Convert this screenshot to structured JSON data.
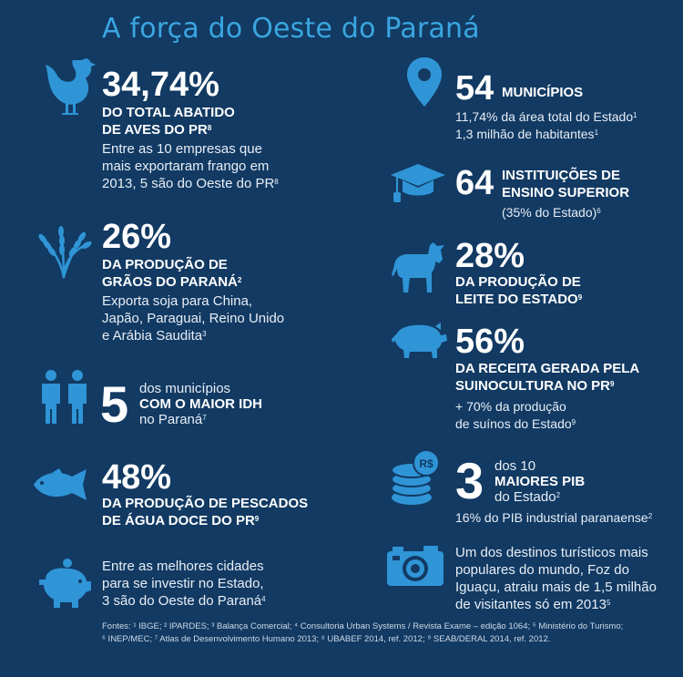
{
  "title": "A força do Oeste do Paraná",
  "left": {
    "poultry": {
      "value": "34,74%",
      "label_line1": "DO TOTAL ABATIDO",
      "label_line2": "DE AVES DO PR",
      "label_sup": "8",
      "desc_line1": "Entre as 10 empresas que",
      "desc_line2": "mais exportaram frango em",
      "desc_line3": "2013, 5 são do Oeste do PR",
      "desc_sup": "8"
    },
    "grains": {
      "value": "26%",
      "label_line1": "DA PRODUÇÃO DE",
      "label_line2": "GRÃOS DO PARANÁ",
      "label_sup": "2",
      "desc_line1": "Exporta soja para China,",
      "desc_line2": "Japão, Paraguai, Reino Unido",
      "desc_line3": "e Arábia Saudita",
      "desc_sup": "3"
    },
    "idh": {
      "value": "5",
      "line1": "dos municípios",
      "line2": "COM O MAIOR IDH",
      "line3": "no Paraná",
      "sup": "7"
    },
    "fish": {
      "value": "48%",
      "label_line1": "DA PRODUÇÃO DE PESCADOS",
      "label_line2": "DE ÁGUA DOCE DO PR",
      "label_sup": "9"
    },
    "invest": {
      "line1": "Entre as melhores cidades",
      "line2": "para se investir no Estado,",
      "line3": "3 são do Oeste do Paraná",
      "sup": "4"
    }
  },
  "right": {
    "municipios": {
      "value": "54",
      "label": "MUNICÍPIOS",
      "desc_line1": "11,74% da área total do Estado",
      "desc_sup1": "1",
      "desc_line2": "1,3 milhão de habitantes",
      "desc_sup2": "1"
    },
    "ensino": {
      "value": "64",
      "label_line1": "INSTITUIÇÕES DE",
      "label_line2": "ENSINO SUPERIOR",
      "desc": "(35% do Estado)",
      "desc_sup": "6"
    },
    "leite": {
      "value": "28%",
      "label_line1": "DA PRODUÇÃO DE",
      "label_line2": "LEITE DO ESTADO",
      "label_sup": "9"
    },
    "suino": {
      "value": "56%",
      "label_line1": "DA RECEITA GERADA PELA",
      "label_line2": "SUINOCULTURA NO PR",
      "label_sup": "9",
      "desc_line1": "+ 70% da produção",
      "desc_line2": "de suínos do Estado",
      "desc_sup": "9"
    },
    "pib": {
      "value": "3",
      "line1": "dos 10",
      "line2": "MAIORES PIB",
      "line3": "do Estado",
      "sup": "2",
      "desc": "16% do PIB industrial paranaense",
      "desc_sup": "2",
      "coin_text": "R$"
    },
    "turismo": {
      "line1": "Um dos destinos turísticos mais",
      "line2": "populares do mundo, Foz do",
      "line3": "Iguaçu, atraiu mais de 1,5 milhão",
      "line4": "de visitantes só em 2013",
      "sup": "5"
    }
  },
  "footer": {
    "line1": "Fontes: ¹ IBGE; ² IPARDES; ³ Balança Comercial; ⁴ Consultoria Urban Systems / Revista Exame – edição 1064; ⁵ Ministério do Turismo;",
    "line2": "⁶ INEP/MEC; ⁷ Atlas de Desenvolvimento Humano 2013; ⁸ UBABEF 2014, ref. 2012; ⁹ SEAB/DERAL 2014, ref. 2012."
  },
  "colors": {
    "background": "#123a63",
    "accent": "#2f95d6",
    "title": "#3aa6e0"
  },
  "icons": [
    "chicken-icon",
    "wheat-icon",
    "people-icon",
    "fish-icon",
    "piggy-bank-icon",
    "location-pin-icon",
    "graduation-cap-icon",
    "cow-icon",
    "pig-icon",
    "coins-icon",
    "camera-icon"
  ]
}
